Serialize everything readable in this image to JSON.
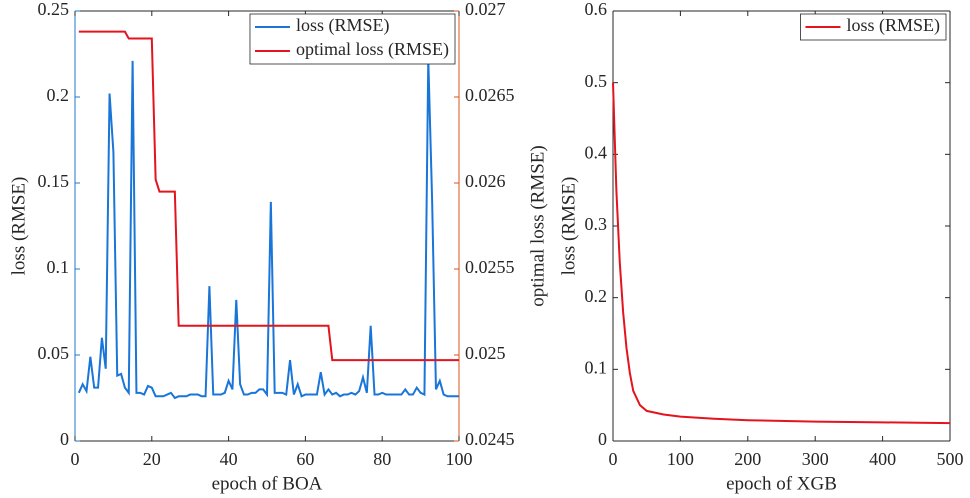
{
  "chart_data": [
    {
      "type": "line",
      "xlabel": "epoch of BOA",
      "ylabel": "loss (RMSE)",
      "y2label": "optimal loss (RMSE)",
      "xlim": [
        0,
        100
      ],
      "xticks": [
        0,
        20,
        40,
        60,
        80,
        100
      ],
      "ylim": [
        0,
        0.25
      ],
      "yticks": [
        0,
        0.05,
        0.1,
        0.15,
        0.2,
        0.25
      ],
      "y2lim": [
        0.0245,
        0.027
      ],
      "y2ticks": [
        0.0245,
        0.025,
        0.0255,
        0.026,
        0.0265,
        0.027
      ],
      "ycolor": "#1f77d0",
      "y2color": "#d95319",
      "grid": false,
      "legend": "upper right",
      "series": [
        {
          "name": "loss (RMSE)",
          "color": "#1a75d9",
          "x": [
            1,
            2,
            3,
            4,
            5,
            6,
            7,
            8,
            9,
            10,
            11,
            12,
            13,
            14,
            15,
            16,
            17,
            18,
            19,
            20,
            21,
            22,
            23,
            24,
            25,
            26,
            27,
            28,
            29,
            30,
            31,
            32,
            33,
            34,
            35,
            36,
            37,
            38,
            39,
            40,
            41,
            42,
            43,
            44,
            45,
            46,
            47,
            48,
            49,
            50,
            51,
            52,
            53,
            54,
            55,
            56,
            57,
            58,
            59,
            60,
            61,
            62,
            63,
            64,
            65,
            66,
            67,
            68,
            69,
            70,
            71,
            72,
            73,
            74,
            75,
            76,
            77,
            78,
            79,
            80,
            81,
            82,
            83,
            84,
            85,
            86,
            87,
            88,
            89,
            90,
            91,
            92,
            93,
            94,
            95,
            96,
            97,
            98,
            99,
            100
          ],
          "values": [
            0.028,
            0.033,
            0.029,
            0.049,
            0.031,
            0.031,
            0.06,
            0.042,
            0.202,
            0.168,
            0.038,
            0.039,
            0.031,
            0.028,
            0.221,
            0.028,
            0.028,
            0.027,
            0.032,
            0.031,
            0.026,
            0.026,
            0.026,
            0.027,
            0.028,
            0.025,
            0.026,
            0.026,
            0.026,
            0.027,
            0.027,
            0.027,
            0.026,
            0.026,
            0.09,
            0.027,
            0.027,
            0.027,
            0.028,
            0.035,
            0.03,
            0.082,
            0.033,
            0.027,
            0.027,
            0.028,
            0.028,
            0.03,
            0.03,
            0.027,
            0.139,
            0.028,
            0.028,
            0.028,
            0.027,
            0.047,
            0.027,
            0.033,
            0.026,
            0.027,
            0.027,
            0.027,
            0.027,
            0.04,
            0.027,
            0.03,
            0.027,
            0.028,
            0.026,
            0.027,
            0.027,
            0.028,
            0.027,
            0.029,
            0.037,
            0.028,
            0.067,
            0.027,
            0.027,
            0.028,
            0.027,
            0.027,
            0.027,
            0.027,
            0.027,
            0.03,
            0.027,
            0.027,
            0.031,
            0.028,
            0.027,
            0.222,
            0.14,
            0.03,
            0.035,
            0.027,
            0.026,
            0.026,
            0.026,
            0.026
          ]
        },
        {
          "name": "optimal loss (RMSE)",
          "color": "#e3141e",
          "axis": "y2",
          "x": [
            1,
            13,
            14,
            20,
            21,
            22,
            26,
            27,
            66,
            67,
            100
          ],
          "values": [
            0.02688,
            0.02688,
            0.02684,
            0.02684,
            0.02602,
            0.02595,
            0.02595,
            0.02517,
            0.02517,
            0.02497,
            0.02497
          ]
        }
      ]
    },
    {
      "type": "line",
      "xlabel": "epoch of XGB",
      "ylabel": "loss (RMSE)",
      "xlim": [
        0,
        500
      ],
      "xticks": [
        0,
        100,
        200,
        300,
        400,
        500
      ],
      "ylim": [
        0,
        0.6
      ],
      "yticks": [
        0,
        0.1,
        0.2,
        0.3,
        0.4,
        0.5,
        0.6
      ],
      "ycolor": "#262626",
      "grid": false,
      "legend": "upper right",
      "series": [
        {
          "name": "loss (RMSE)",
          "color": "#e3141e",
          "x": [
            0,
            5,
            10,
            15,
            20,
            25,
            30,
            40,
            50,
            75,
            100,
            150,
            200,
            300,
            400,
            500
          ],
          "values": [
            0.5,
            0.35,
            0.25,
            0.18,
            0.13,
            0.095,
            0.07,
            0.05,
            0.042,
            0.037,
            0.034,
            0.031,
            0.029,
            0.027,
            0.026,
            0.025
          ]
        }
      ]
    }
  ]
}
